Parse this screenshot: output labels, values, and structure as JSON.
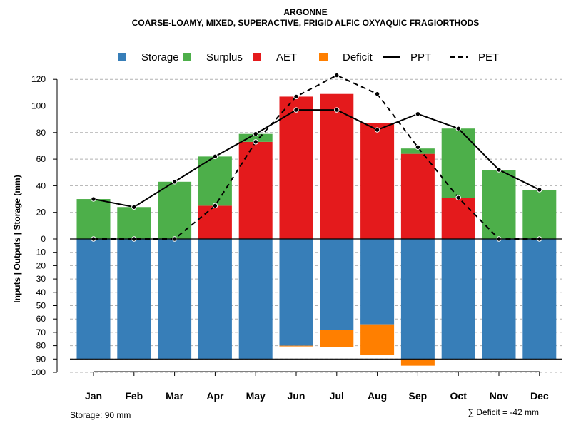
{
  "chart_data": {
    "type": "bar",
    "title": "ARGONNE",
    "subtitle": "COARSE-LOAMY, MIXED, SUPERACTIVE, FRIGID ALFIC OXYAQUIC FRAGIORTHODS",
    "ylabel": "Inputs | Outputs | Storage    (mm)",
    "categories": [
      "Jan",
      "Feb",
      "Mar",
      "Apr",
      "May",
      "Jun",
      "Jul",
      "Aug",
      "Sep",
      "Oct",
      "Nov",
      "Dec"
    ],
    "ylim": [
      -100,
      130
    ],
    "y_ticks_top": [
      "0",
      "20",
      "40",
      "60",
      "80",
      "100",
      "120"
    ],
    "y_ticks_bottom": [
      "10",
      "20",
      "30",
      "40",
      "50",
      "60",
      "70",
      "80",
      "90",
      "100"
    ],
    "legend": [
      {
        "label": "Storage",
        "kind": "square",
        "color": "#377EB8"
      },
      {
        "label": "Surplus",
        "kind": "square",
        "color": "#4DAF4A"
      },
      {
        "label": "AET",
        "kind": "square",
        "color": "#E41A1C"
      },
      {
        "label": "Deficit",
        "kind": "square",
        "color": "#FF7F00"
      },
      {
        "label": "PPT",
        "kind": "solid-line",
        "color": "#000000"
      },
      {
        "label": "PET",
        "kind": "dashed-line",
        "color": "#000000"
      }
    ],
    "series": [
      {
        "name": "AET",
        "color": "#E41A1C",
        "values": [
          0,
          0,
          0,
          25,
          73,
          107,
          109,
          87,
          64,
          31,
          0,
          0
        ]
      },
      {
        "name": "Surplus",
        "color": "#4DAF4A",
        "values": [
          30,
          24,
          43,
          37,
          6,
          0,
          0,
          0,
          4,
          52,
          52,
          37
        ]
      },
      {
        "name": "Storage",
        "color": "#377EB8",
        "values": [
          90,
          90,
          90,
          90,
          90,
          80,
          68,
          64,
          90,
          90,
          90,
          90
        ]
      },
      {
        "name": "Deficit",
        "color": "#FF7F00",
        "values": [
          0,
          0,
          0,
          0,
          0,
          0.5,
          13,
          23,
          5,
          0,
          0,
          0
        ]
      },
      {
        "name": "PPT",
        "color": "#000000",
        "values": [
          30,
          24,
          43,
          62,
          79,
          97,
          97,
          82,
          94,
          83,
          52,
          37
        ]
      },
      {
        "name": "PET",
        "color": "#000000",
        "values": [
          0,
          0,
          0,
          25,
          73,
          107,
          123,
          109,
          69,
          31,
          0,
          0
        ]
      }
    ],
    "storage_capacity": 90,
    "storage_note": "Storage: 90 mm",
    "deficit_note": "∑ Deficit = -42 mm",
    "grid": true,
    "legend_position": "top"
  }
}
